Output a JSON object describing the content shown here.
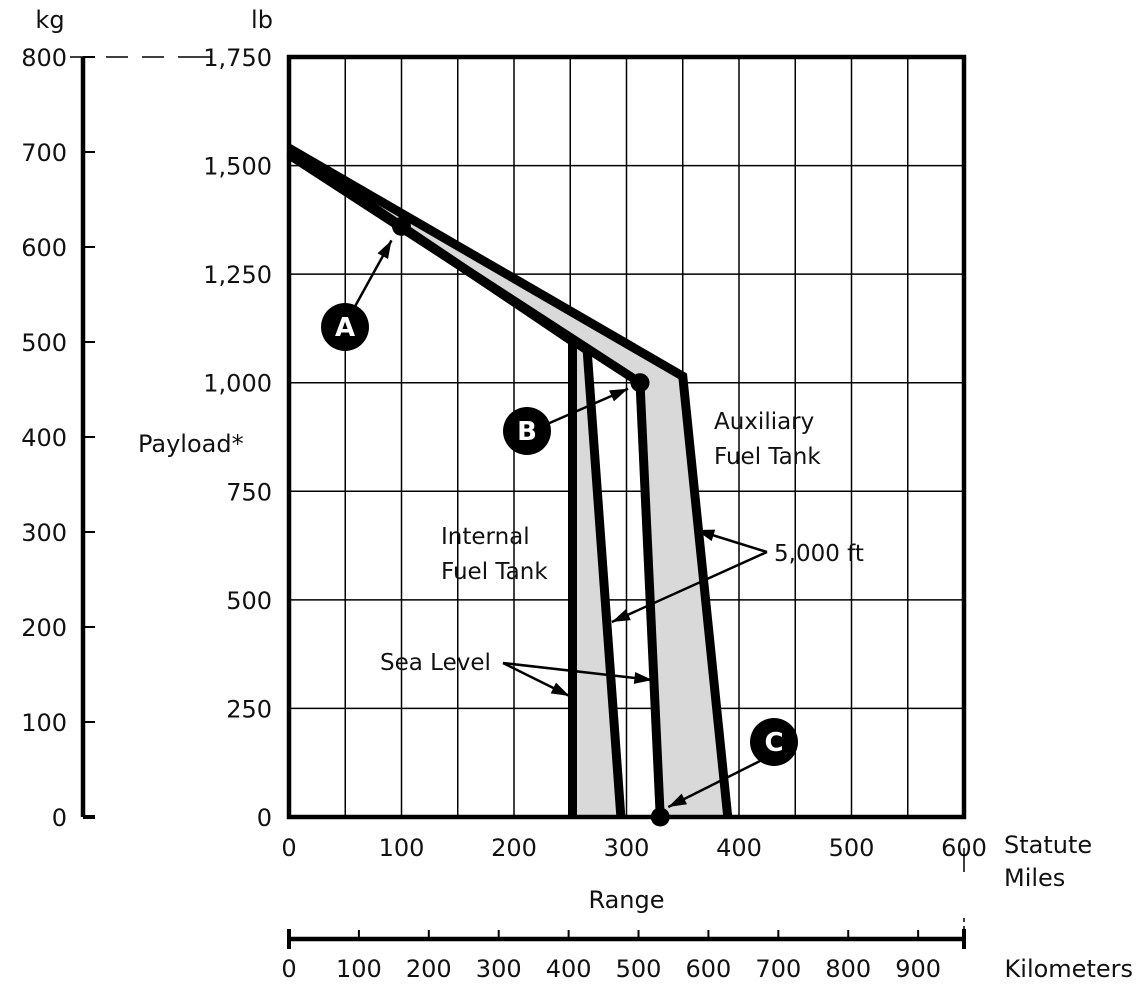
{
  "chart_data": {
    "type": "line",
    "x_axis": {
      "label": "Range",
      "unit_label": [
        "Statute",
        "Miles"
      ],
      "lim": [
        0,
        600
      ],
      "ticks": [
        0,
        100,
        200,
        300,
        400,
        500,
        600
      ]
    },
    "km_axis": {
      "unit_label": "Kilometers",
      "ticks": [
        0,
        100,
        200,
        300,
        400,
        500,
        600,
        700,
        800,
        900
      ]
    },
    "y_axis": {
      "label": "Payload*",
      "unit_label": "lb",
      "lim": [
        0,
        1750
      ],
      "ticks": [
        0,
        250,
        500,
        750,
        1000,
        1250,
        1500,
        1750
      ],
      "tick_labels": [
        "0",
        "250",
        "500",
        "750",
        "1,000",
        "1,250",
        "1,500",
        "1,750"
      ]
    },
    "kg_axis": {
      "unit_label": "kg",
      "lim": [
        0,
        800
      ],
      "ticks": [
        0,
        100,
        200,
        300,
        400,
        500,
        600,
        700,
        800
      ]
    },
    "grid": true,
    "series": [
      {
        "name": "Internal Fuel Tank, Sea Level",
        "points": [
          [
            0,
            1535
          ],
          [
            252,
            1095
          ],
          [
            252,
            0
          ]
        ]
      },
      {
        "name": "Internal Fuel Tank, 5,000 ft",
        "points": [
          [
            0,
            1530
          ],
          [
            265,
            1075
          ],
          [
            295,
            0
          ]
        ]
      },
      {
        "name": "Auxiliary Fuel Tank, Sea Level",
        "points": [
          [
            0,
            1525
          ],
          [
            312,
            1000
          ],
          [
            330,
            0
          ]
        ]
      },
      {
        "name": "Auxiliary Fuel Tank, 5,000 ft",
        "points": [
          [
            0,
            1540
          ],
          [
            350,
            1015
          ],
          [
            390,
            0
          ]
        ]
      }
    ],
    "shaded_regions": [
      {
        "between": [
          "Internal Fuel Tank, Sea Level",
          "Internal Fuel Tank, 5,000 ft"
        ],
        "color": "#d9d9d9"
      },
      {
        "between": [
          "Auxiliary Fuel Tank, Sea Level",
          "Auxiliary Fuel Tank, 5,000 ft"
        ],
        "color": "#d9d9d9"
      }
    ],
    "annotations": {
      "internal": [
        "Internal",
        "Fuel Tank"
      ],
      "auxiliary": [
        "Auxiliary",
        "Fuel Tank"
      ],
      "alt_high": "5,000 ft",
      "alt_sea": "Sea Level"
    },
    "callouts": [
      {
        "label": "A",
        "point": [
          100,
          1360
        ]
      },
      {
        "label": "B",
        "point": [
          312,
          1000
        ]
      },
      {
        "label": "C",
        "point": [
          330,
          0
        ]
      }
    ],
    "colors": {
      "line": "#000000",
      "fill": "#d9d9d9",
      "grid": "#000000"
    }
  }
}
